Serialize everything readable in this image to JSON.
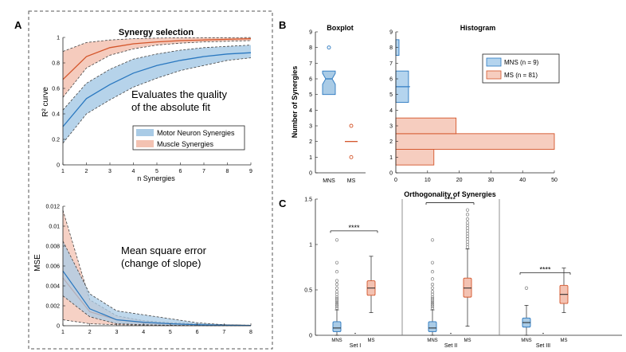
{
  "colors": {
    "mns_fill": "#a9cbe6",
    "mns_line": "#2a78c0",
    "ms_fill": "#f3c2b2",
    "ms_line": "#d4552a",
    "axis": "#222222",
    "dash": "#555555",
    "hist_mns": "#b4d4ee",
    "hist_ms": "#f6cdbf"
  },
  "panelA": {
    "label": "A",
    "r2": {
      "title": "Synergy selection",
      "ylabel": "R² curve",
      "xlabel": "n Synergies",
      "annotation_line1": "Evaluates the quality",
      "annotation_line2": "of the absolute fit",
      "xticks": [
        "1",
        "2",
        "3",
        "4",
        "5",
        "6",
        "7",
        "8",
        "9"
      ],
      "yticks": [
        "0",
        "0.2",
        "0.4",
        "0.6",
        "0.8",
        "1"
      ],
      "legend": [
        "Motor Neuron Synergies",
        "Muscle Synergies"
      ]
    },
    "mse": {
      "ylabel": "MSE",
      "annotation_line1": "Mean square error",
      "annotation_line2": "(change of slope)",
      "xticks": [
        "1",
        "2",
        "3",
        "4",
        "5",
        "6",
        "7",
        "8"
      ],
      "yticks": [
        "0",
        "0.002",
        "0.004",
        "0.006",
        "0.008",
        "0.01",
        "0.012"
      ]
    }
  },
  "panelB": {
    "label": "B",
    "box_title": "Boxplot",
    "hist_title": "Histogram",
    "ylabel": "Number of Synergies",
    "box_xticks": [
      "MNS",
      "MS"
    ],
    "yticks": [
      "0",
      "1",
      "2",
      "3",
      "4",
      "5",
      "6",
      "7",
      "8",
      "9"
    ],
    "hist_xticks": [
      "0",
      "10",
      "20",
      "30",
      "40",
      "50"
    ],
    "legend": [
      "MNS (n = 9)",
      "MS (n = 81)"
    ]
  },
  "panelC": {
    "label": "C",
    "title": "Orthogonality of Synergies",
    "yticks": [
      "0",
      "0.5",
      "1",
      "1.5"
    ],
    "sets": [
      {
        "name": "Set I",
        "mns_label": "MNS",
        "ms_label": "MS",
        "sig": "****"
      },
      {
        "name": "Set II",
        "mns_label": "MNS",
        "ms_label": "MS",
        "sig": "****"
      },
      {
        "name": "Set III",
        "mns_label": "MNS",
        "ms_label": "MS",
        "sig": "****"
      }
    ]
  },
  "chart_data": [
    {
      "type": "line",
      "title": "Synergy selection",
      "xlabel": "n Synergies",
      "ylabel": "R² curve",
      "xlim": [
        1,
        9
      ],
      "ylim": [
        0,
        1
      ],
      "x": [
        1,
        2,
        3,
        4,
        5,
        6,
        7,
        8,
        9
      ],
      "series": [
        {
          "name": "Motor Neuron Synergies",
          "mean": [
            0.3,
            0.52,
            0.63,
            0.72,
            0.78,
            0.82,
            0.85,
            0.87,
            0.88
          ],
          "lower": [
            0.17,
            0.4,
            0.51,
            0.61,
            0.68,
            0.74,
            0.78,
            0.82,
            0.84
          ],
          "upper": [
            0.43,
            0.64,
            0.75,
            0.83,
            0.87,
            0.9,
            0.92,
            0.93,
            0.94
          ]
        },
        {
          "name": "Muscle Synergies",
          "mean": [
            0.67,
            0.85,
            0.92,
            0.95,
            0.965,
            0.975,
            0.98,
            0.985,
            0.99
          ],
          "lower": [
            0.53,
            0.76,
            0.86,
            0.91,
            0.94,
            0.955,
            0.965,
            0.97,
            0.975
          ],
          "upper": [
            0.89,
            0.96,
            0.98,
            0.99,
            0.995,
            0.997,
            0.998,
            0.998,
            0.999
          ]
        }
      ]
    },
    {
      "type": "line",
      "ylabel": "MSE",
      "xlim": [
        1,
        8
      ],
      "ylim": [
        0,
        0.012
      ],
      "x": [
        1,
        2,
        3,
        4,
        5,
        6,
        7,
        8
      ],
      "series": [
        {
          "name": "Motor Neuron Synergies",
          "mean": [
            0.0055,
            0.0017,
            0.0006,
            0.00035,
            0.0002,
            0.0001,
            5e-05,
            2e-05
          ],
          "lower": [
            0.003,
            0.0009,
            0.0002,
            0.0001,
            5e-05,
            2e-05,
            1e-05,
            0.0
          ],
          "upper": [
            0.0085,
            0.0032,
            0.0015,
            0.0011,
            0.0007,
            0.0003,
            0.0001,
            5e-05
          ]
        },
        {
          "name": "Muscle Synergies",
          "mean": [
            0.0048,
            0.0014,
            0.0006,
            0.0003,
            0.0002,
            0.0001,
            5e-05,
            2e-05
          ],
          "lower": [
            0.0006,
            0.0002,
            0.0001,
            5e-05,
            2e-05,
            1e-05,
            0.0,
            0.0
          ],
          "upper": [
            0.0116,
            0.0026,
            0.001,
            0.0005,
            0.0003,
            0.0002,
            0.0001,
            5e-05
          ]
        }
      ]
    },
    {
      "type": "box",
      "title": "Boxplot",
      "ylabel": "Number of Synergies",
      "ylim": [
        0,
        9
      ],
      "categories": [
        "MNS",
        "MS"
      ],
      "boxes": [
        {
          "name": "MNS",
          "q1": 5,
          "median": 6,
          "q3": 6.5,
          "whisker_low": 5,
          "whisker_high": 6.5,
          "outliers": [
            8
          ]
        },
        {
          "name": "MS",
          "q1": 2,
          "median": 2,
          "q3": 2,
          "whisker_low": 2,
          "whisker_high": 2,
          "outliers": [
            1,
            3
          ]
        }
      ]
    },
    {
      "type": "bar",
      "orientation": "horizontal",
      "title": "Histogram",
      "xlim": [
        0,
        50
      ],
      "ylim": [
        0,
        9
      ],
      "categories": [
        1,
        2,
        3,
        4,
        5,
        6,
        7,
        8
      ],
      "series": [
        {
          "name": "MNS (n = 9)",
          "values": [
            0,
            0,
            0,
            0,
            4,
            4,
            0,
            1
          ]
        },
        {
          "name": "MS (n = 81)",
          "values": [
            12,
            50,
            19,
            0,
            0,
            0,
            0,
            0
          ]
        }
      ]
    },
    {
      "type": "box",
      "title": "Orthogonality of Synergies",
      "ylim": [
        0,
        1.5
      ],
      "groups": [
        {
          "name": "Set I",
          "sig": "****",
          "mns": {
            "q1": 0.04,
            "median": 0.08,
            "q3": 0.15,
            "whisker_low": 0.0,
            "whisker_high": 0.28,
            "outliers": [
              0.3,
              0.32,
              0.34,
              0.36,
              0.38,
              0.4,
              0.42,
              0.45,
              0.48,
              0.52,
              0.56,
              0.6,
              0.7,
              0.8,
              1.05
            ]
          },
          "ms": {
            "q1": 0.44,
            "median": 0.52,
            "q3": 0.6,
            "whisker_low": 0.25,
            "whisker_high": 0.87,
            "outliers": []
          }
        },
        {
          "name": "Set II",
          "sig": "****",
          "mns": {
            "q1": 0.04,
            "median": 0.08,
            "q3": 0.15,
            "whisker_low": 0.0,
            "whisker_high": 0.28,
            "outliers": [
              0.3,
              0.32,
              0.34,
              0.36,
              0.38,
              0.4,
              0.42,
              0.45,
              0.48,
              0.52,
              0.56,
              0.62,
              0.7,
              0.8,
              1.05
            ]
          },
          "ms": {
            "q1": 0.42,
            "median": 0.52,
            "q3": 0.63,
            "whisker_low": 0.1,
            "whisker_high": 0.95,
            "outliers": [
              0.97,
              1.0,
              1.03,
              1.06,
              1.09,
              1.12,
              1.15,
              1.18,
              1.21,
              1.24,
              1.28,
              1.33,
              1.38
            ]
          }
        },
        {
          "name": "Set III",
          "sig": "****",
          "mns": {
            "q1": 0.09,
            "median": 0.14,
            "q3": 0.19,
            "whisker_low": 0.0,
            "whisker_high": 0.33,
            "outliers": [
              0.52
            ]
          },
          "ms": {
            "q1": 0.35,
            "median": 0.45,
            "q3": 0.55,
            "whisker_low": 0.25,
            "whisker_high": 0.74,
            "outliers": []
          }
        }
      ]
    }
  ]
}
